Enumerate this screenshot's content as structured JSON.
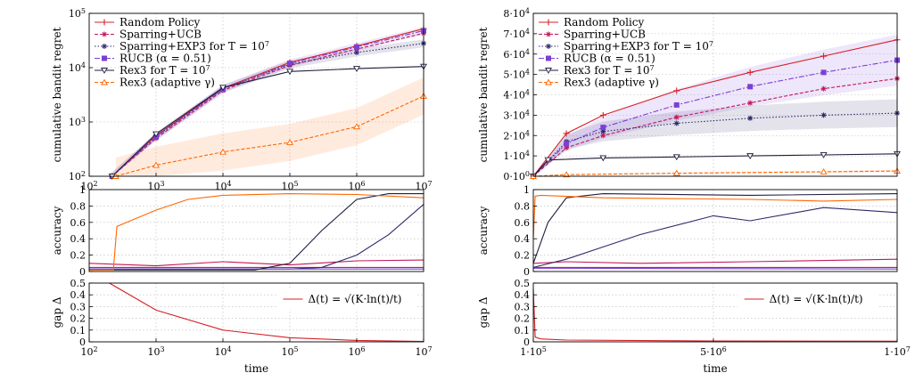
{
  "chart_data": [
    {
      "type": "line",
      "panel": "left-top",
      "xscale": "log",
      "yscale": "log",
      "xlim": [
        100,
        10000000
      ],
      "ylim": [
        100,
        100000
      ],
      "ylabel": "cumulative bandit regret",
      "xticks": [
        100,
        1000,
        10000,
        100000,
        1000000,
        10000000
      ],
      "xtick_labels": [
        "10^2",
        "10^3",
        "10^4",
        "10^5",
        "10^6",
        "10^7"
      ],
      "yticks": [
        100,
        1000,
        10000,
        100000
      ],
      "ytick_labels": [
        "10^2",
        "10^3",
        "10^4",
        "10^5"
      ],
      "grid": true,
      "legend": "top-left",
      "series": [
        {
          "name": "Random Policy",
          "color": "#d62027",
          "marker": "plus",
          "dash": "",
          "x": [
            220,
            1000,
            10000,
            100000,
            1000000,
            10000000
          ],
          "y": [
            100,
            560,
            4200,
            12500,
            25000,
            52000
          ]
        },
        {
          "name": "Sparring+UCB",
          "color": "#c2185b",
          "marker": "star",
          "dash": "4 2",
          "x": [
            220,
            1000,
            10000,
            100000,
            1000000,
            10000000
          ],
          "y": [
            100,
            500,
            3800,
            11000,
            22000,
            43000
          ]
        },
        {
          "name": "Sparring+EXP3 for T = 10^7",
          "color": "#2c2a6b",
          "marker": "star",
          "dash": "1.5 2",
          "x": [
            220,
            1000,
            10000,
            100000,
            1000000,
            10000000
          ],
          "y": [
            100,
            540,
            4100,
            11500,
            19000,
            28000
          ]
        },
        {
          "name": "RUCB (α = 0.51)",
          "color": "#7b3fd6",
          "marker": "square",
          "dash": "6 2 2 2",
          "x": [
            220,
            1000,
            10000,
            100000,
            1000000,
            10000000
          ],
          "y": [
            100,
            530,
            4000,
            12000,
            24000,
            48000
          ]
        },
        {
          "name": "Rex3 for T = 10^7",
          "color": "#1e1e3c",
          "marker": "triangle-down",
          "dash": "",
          "x": [
            220,
            1000,
            10000,
            100000,
            1000000,
            10000000
          ],
          "y": [
            100,
            600,
            4300,
            8500,
            9600,
            10500
          ]
        },
        {
          "name": "Rex3 (adaptive γ)",
          "color": "#ff6600",
          "marker": "triangle-up",
          "dash": "4 2",
          "x": [
            250,
            1000,
            10000,
            100000,
            1000000,
            10000000
          ],
          "y": [
            100,
            160,
            280,
            420,
            820,
            3000
          ]
        }
      ]
    },
    {
      "type": "line",
      "panel": "left-middle",
      "xscale": "log",
      "xlim": [
        100,
        10000000
      ],
      "ylim": [
        0,
        1
      ],
      "ylabel": "accuracy",
      "yticks": [
        0,
        0.2,
        0.4,
        0.6,
        0.8,
        1
      ],
      "ytick_labels": [
        "0",
        "0.2",
        "0.4",
        "0.6",
        "0.8",
        "1"
      ],
      "grid": true,
      "series": [
        {
          "name": "Random Policy",
          "color": "#d62027",
          "x": [
            100,
            10000000
          ],
          "y": [
            0.05,
            0.05
          ]
        },
        {
          "name": "Sparring+UCB",
          "color": "#c2185b",
          "x": [
            100,
            1000,
            10000,
            100000,
            1000000,
            10000000
          ],
          "y": [
            0.1,
            0.07,
            0.12,
            0.08,
            0.13,
            0.14
          ]
        },
        {
          "name": "Sparring+EXP3 for T = 10^7",
          "color": "#2c2a6b",
          "x": [
            100,
            100000,
            300000,
            1000000,
            3000000,
            10000000
          ],
          "y": [
            0.03,
            0.03,
            0.05,
            0.2,
            0.45,
            0.82
          ]
        },
        {
          "name": "RUCB (α = 0.51)",
          "color": "#7b3fd6",
          "x": [
            100,
            10000000
          ],
          "y": [
            0.03,
            0.03
          ]
        },
        {
          "name": "Rex3 for T = 10^7",
          "color": "#1e1e3c",
          "x": [
            100,
            30000,
            100000,
            300000,
            1000000,
            3000000,
            10000000
          ],
          "y": [
            0.02,
            0.02,
            0.1,
            0.5,
            0.88,
            0.95,
            0.95
          ]
        },
        {
          "name": "Rex3 (adaptive γ)",
          "color": "#ff6600",
          "x": [
            100,
            230,
            260,
            1000,
            3000,
            10000,
            100000,
            1000000,
            10000000
          ],
          "y": [
            0.02,
            0.02,
            0.55,
            0.75,
            0.88,
            0.93,
            0.95,
            0.94,
            0.9
          ]
        }
      ]
    },
    {
      "type": "line",
      "panel": "left-bottom",
      "xscale": "log",
      "xlim": [
        100,
        10000000
      ],
      "ylim": [
        0,
        0.5
      ],
      "ylabel": "gap Δ",
      "xlabel": "time",
      "yticks": [
        0,
        0.1,
        0.2,
        0.3,
        0.4,
        0.5
      ],
      "ytick_labels": [
        "0",
        "0.1",
        "0.2",
        "0.3",
        "0.4",
        "0.5"
      ],
      "xticks": [
        100,
        1000,
        10000,
        100000,
        1000000,
        10000000
      ],
      "xtick_labels": [
        "10^2",
        "10^3",
        "10^4",
        "10^5",
        "10^6",
        "10^7"
      ],
      "grid": true,
      "legend_label": "Δ(t) = √(K·ln(t)/t)",
      "series": [
        {
          "name": "Δ(t)",
          "color": "#d62027",
          "x": [
            200,
            1000,
            10000,
            100000,
            1000000,
            10000000
          ],
          "y": [
            0.5,
            0.27,
            0.1,
            0.035,
            0.012,
            0.004
          ]
        }
      ]
    },
    {
      "type": "line",
      "panel": "right-top",
      "xlim": [
        100000,
        10000000
      ],
      "ylim": [
        0,
        80000
      ],
      "ylabel": "cumulative bandit regret",
      "yticks": [
        0,
        10000,
        20000,
        30000,
        40000,
        50000,
        60000,
        70000,
        80000
      ],
      "ytick_labels": [
        "0·10^0",
        "1·10^4",
        "2·10^4",
        "3·10^4",
        "4·10^4",
        "5·10^4",
        "6·10^4",
        "7·10^4",
        "8·10^4"
      ],
      "grid": true,
      "legend": "top-left",
      "series": [
        {
          "name": "Random Policy",
          "color": "#d62027",
          "marker": "plus",
          "dash": "",
          "x": [
            100000,
            1000000,
            2000000,
            4000000,
            6000000,
            8000000,
            10000000
          ],
          "y": [
            0,
            21000,
            30000,
            42000,
            51000,
            59000,
            67000
          ]
        },
        {
          "name": "Sparring+UCB",
          "color": "#c2185b",
          "marker": "star",
          "dash": "4 2",
          "x": [
            100000,
            1000000,
            2000000,
            4000000,
            6000000,
            8000000,
            10000000
          ],
          "y": [
            0,
            14000,
            20000,
            29000,
            36000,
            43000,
            48000
          ]
        },
        {
          "name": "Sparring+EXP3 for T = 10^7",
          "color": "#2c2a6b",
          "marker": "star",
          "dash": "1.5 2",
          "x": [
            100000,
            1000000,
            2000000,
            4000000,
            6000000,
            8000000,
            10000000
          ],
          "y": [
            0,
            17000,
            22000,
            26000,
            28500,
            30000,
            31000
          ]
        },
        {
          "name": "RUCB (α = 0.51)",
          "color": "#7b3fd6",
          "marker": "square",
          "dash": "6 2 2 2",
          "x": [
            100000,
            1000000,
            2000000,
            4000000,
            6000000,
            8000000,
            10000000
          ],
          "y": [
            0,
            16000,
            24000,
            35000,
            44000,
            51000,
            57000
          ]
        },
        {
          "name": "Rex3 for T = 10^7",
          "color": "#1e1e3c",
          "marker": "triangle-down",
          "dash": "",
          "x": [
            100000,
            500000,
            2000000,
            4000000,
            6000000,
            8000000,
            10000000
          ],
          "y": [
            0,
            8000,
            9000,
            9500,
            10000,
            10500,
            11000
          ]
        },
        {
          "name": "Rex3 (adaptive γ)",
          "color": "#ff6600",
          "marker": "triangle-up",
          "dash": "4 2",
          "x": [
            100000,
            1000000,
            4000000,
            8000000,
            10000000
          ],
          "y": [
            0,
            800,
            1500,
            2200,
            2600
          ]
        }
      ]
    },
    {
      "type": "line",
      "panel": "right-middle",
      "xlim": [
        100000,
        10000000
      ],
      "ylim": [
        0,
        1
      ],
      "ylabel": "accuracy",
      "yticks": [
        0,
        0.2,
        0.4,
        0.6,
        0.8,
        1
      ],
      "ytick_labels": [
        "0",
        "0.2",
        "0.4",
        "0.6",
        "0.8",
        "1"
      ],
      "grid": true,
      "series": [
        {
          "name": "Random Policy",
          "color": "#d62027",
          "x": [
            100000,
            10000000
          ],
          "y": [
            0.05,
            0.05
          ]
        },
        {
          "name": "Sparring+UCB",
          "color": "#c2185b",
          "x": [
            100000,
            1000000,
            3000000,
            6000000,
            10000000
          ],
          "y": [
            0.1,
            0.12,
            0.1,
            0.12,
            0.15
          ]
        },
        {
          "name": "Sparring+EXP3 for T = 10^7",
          "color": "#2c2a6b",
          "x": [
            100000,
            1000000,
            2000000,
            3000000,
            5000000,
            6000000,
            8000000,
            10000000
          ],
          "y": [
            0.05,
            0.15,
            0.3,
            0.45,
            0.68,
            0.62,
            0.78,
            0.72
          ]
        },
        {
          "name": "RUCB (α = 0.51)",
          "color": "#7b3fd6",
          "x": [
            100000,
            10000000
          ],
          "y": [
            0.04,
            0.03
          ]
        },
        {
          "name": "Rex3 for T = 10^7",
          "color": "#1e1e3c",
          "x": [
            100000,
            500000,
            1000000,
            2000000,
            6000000,
            10000000
          ],
          "y": [
            0.1,
            0.6,
            0.9,
            0.95,
            0.93,
            0.95
          ]
        },
        {
          "name": "Rex3 (adaptive γ)",
          "color": "#ff6600",
          "x": [
            100000,
            150000,
            300000,
            2000000,
            6000000,
            8000000,
            10000000
          ],
          "y": [
            0.4,
            0.92,
            0.93,
            0.9,
            0.88,
            0.86,
            0.88
          ]
        }
      ]
    },
    {
      "type": "line",
      "panel": "right-bottom",
      "xlim": [
        100000,
        10000000
      ],
      "ylim": [
        0,
        0.5
      ],
      "ylabel": "gap Δ",
      "xlabel": "time",
      "yticks": [
        0,
        0.1,
        0.2,
        0.3,
        0.4,
        0.5
      ],
      "ytick_labels": [
        "0",
        "0.1",
        "0.2",
        "0.3",
        "0.4",
        "0.5"
      ],
      "xticks": [
        100000,
        5000000,
        10000000
      ],
      "xtick_labels": [
        "1·10^5",
        "5·10^6",
        "1·10^7"
      ],
      "grid": true,
      "legend_label": "Δ(t) = √(K·ln(t)/t)",
      "series": [
        {
          "name": "Δ(t)",
          "color": "#d62027",
          "x": [
            100000,
            150000,
            300000,
            1000000,
            5000000,
            10000000
          ],
          "y": [
            0.45,
            0.04,
            0.025,
            0.015,
            0.007,
            0.005
          ]
        }
      ]
    }
  ]
}
